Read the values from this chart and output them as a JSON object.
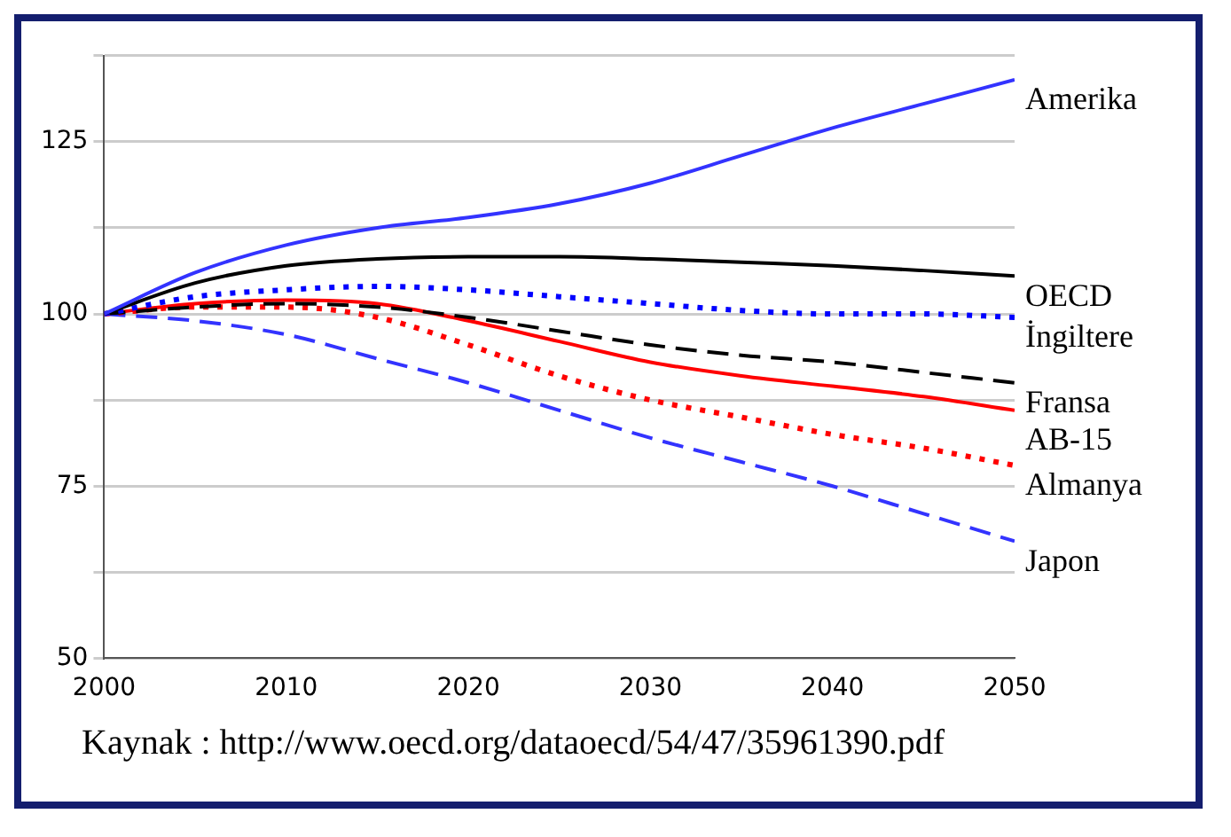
{
  "chart_data": {
    "type": "line",
    "x": [
      2000,
      2005,
      2010,
      2015,
      2020,
      2025,
      2030,
      2035,
      2040,
      2045,
      2050
    ],
    "xlim": [
      2000,
      2050
    ],
    "xticks": [
      2000,
      2010,
      2020,
      2030,
      2040,
      2050
    ],
    "ylim": [
      50,
      137.5
    ],
    "yticks": [
      50,
      {
        "value": 62.5,
        "label": null
      },
      75,
      {
        "value": 87.5,
        "label": null
      },
      100,
      {
        "value": 112.5,
        "label": null
      },
      125,
      {
        "value": 137.5,
        "label": null
      }
    ],
    "grid": "y",
    "legend": false,
    "marker": "none",
    "series": [
      {
        "name": "Amerika",
        "color": "#3333ff",
        "line_style": "solid",
        "values": [
          100,
          106,
          110,
          112.5,
          114,
          116,
          119,
          123,
          127,
          130.5,
          134
        ]
      },
      {
        "name": "OECD",
        "color": "#000000",
        "line_style": "solid",
        "values": [
          100,
          104.5,
          107,
          108,
          108.3,
          108.3,
          108,
          107.5,
          107,
          106.3,
          105.5
        ]
      },
      {
        "name": "İngiltere",
        "color": "#0000ff",
        "line_style": "dotted",
        "values": [
          100,
          102.5,
          103.5,
          104,
          103.5,
          102.5,
          101.5,
          100.5,
          100,
          100,
          99.5
        ]
      },
      {
        "name": "Fransa",
        "color": "#000000",
        "line_style": "dashed",
        "values": [
          100,
          101,
          101.5,
          101,
          99.5,
          97.5,
          95.5,
          94,
          93,
          91.5,
          90
        ]
      },
      {
        "name": "AB-15",
        "color": "#ff0000",
        "line_style": "solid",
        "values": [
          100,
          101.5,
          102,
          101.5,
          99,
          96,
          93,
          91,
          89.5,
          88,
          86
        ]
      },
      {
        "name": "Almanya",
        "color": "#ff0000",
        "line_style": "dotted",
        "values": [
          100,
          101,
          101,
          99.5,
          95.5,
          91,
          87.5,
          85,
          82.5,
          80.5,
          78
        ]
      },
      {
        "name": "Japon",
        "color": "#3333ff",
        "line_style": "dashed",
        "values": [
          100,
          99,
          97,
          93.5,
          90,
          86,
          82,
          78.5,
          75,
          71,
          67
        ]
      }
    ],
    "annotations": [
      "Kaynak : http://www.oecd.org/dataoecd/54/47/35961390.pdf"
    ]
  }
}
